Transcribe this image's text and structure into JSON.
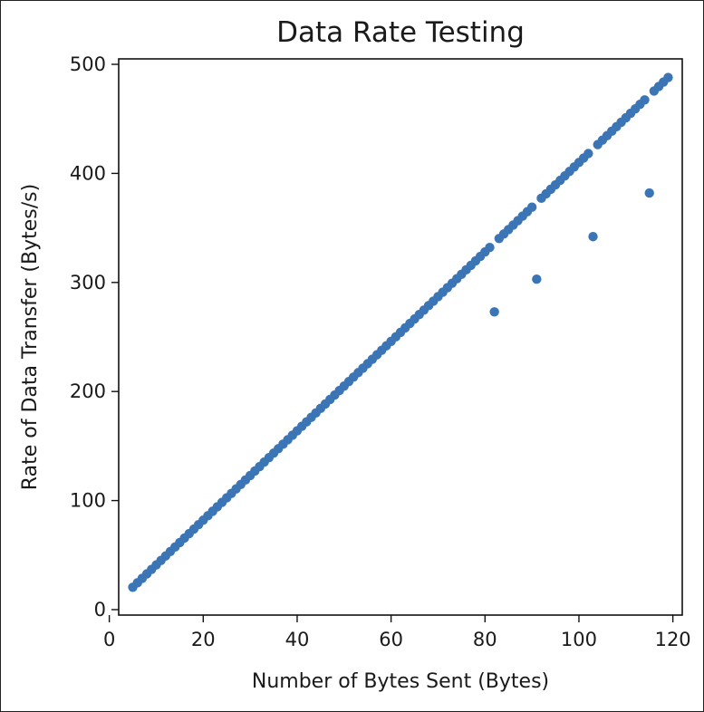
{
  "chart_data": {
    "type": "scatter",
    "title": "Data Rate Testing",
    "xlabel": "Number of Bytes Sent (Bytes)",
    "ylabel": "Rate of Data Transfer (Bytes/s)",
    "xlim": [
      2,
      122
    ],
    "ylim": [
      -5,
      505
    ],
    "xticks": [
      0,
      20,
      40,
      60,
      80,
      100,
      120
    ],
    "yticks": [
      0,
      100,
      200,
      300,
      400,
      500
    ],
    "grid": false,
    "marker_color": "#3b75b5",
    "series": [
      {
        "x": [
          5,
          6,
          7,
          8,
          9,
          10,
          11,
          12,
          13,
          14,
          15,
          16,
          17,
          18,
          19,
          20,
          21,
          22,
          23,
          24,
          25,
          26,
          27,
          28,
          29,
          30,
          31,
          32,
          33,
          34,
          35,
          36,
          37,
          38,
          39,
          40,
          41,
          42,
          43,
          44,
          45,
          46,
          47,
          48,
          49,
          50,
          51,
          52,
          53,
          54,
          55,
          56,
          57,
          58,
          59,
          60,
          61,
          62,
          63,
          64,
          65,
          66,
          67,
          68,
          69,
          70,
          71,
          72,
          73,
          74,
          75,
          76,
          77,
          78,
          79,
          80,
          81,
          82,
          83,
          84,
          85,
          86,
          87,
          88,
          89,
          90,
          91,
          92,
          93,
          94,
          95,
          96,
          97,
          98,
          99,
          100,
          101,
          102,
          103,
          104,
          105,
          106,
          107,
          108,
          109,
          110,
          111,
          112,
          113,
          114,
          115,
          116,
          117,
          118,
          119
        ],
        "y": [
          20.5,
          24.6,
          28.7,
          32.8,
          36.9,
          41,
          45.1,
          49.2,
          53.3,
          57.4,
          61.5,
          65.6,
          69.7,
          73.8,
          77.9,
          82,
          86.1,
          90.2,
          94.3,
          98.4,
          102.5,
          106.6,
          110.7,
          114.8,
          118.9,
          123,
          127.1,
          131.2,
          135.3,
          139.4,
          143.5,
          147.6,
          151.7,
          155.8,
          159.9,
          164,
          168.1,
          172.2,
          176.3,
          180.4,
          184.5,
          188.6,
          192.7,
          196.8,
          200.9,
          205,
          209.1,
          213.2,
          217.3,
          221.4,
          225.5,
          229.6,
          233.7,
          237.8,
          241.9,
          246,
          250.1,
          254.2,
          258.3,
          262.4,
          266.5,
          270.6,
          274.7,
          278.8,
          282.9,
          287,
          291.1,
          295.2,
          299.3,
          303.4,
          307.5,
          311.6,
          315.7,
          319.8,
          323.9,
          328,
          332.1,
          273,
          340.3,
          344.4,
          348.5,
          352.6,
          356.7,
          360.8,
          364.9,
          369,
          303,
          377.2,
          381.3,
          385.4,
          389.5,
          393.6,
          397.7,
          401.8,
          405.9,
          410,
          414.1,
          418.2,
          342,
          426.4,
          430.5,
          434.6,
          438.7,
          442.8,
          446.9,
          451,
          455.1,
          459.2,
          463.3,
          467.4,
          382,
          475.6,
          479.7,
          483.8,
          487.9
        ]
      }
    ]
  }
}
